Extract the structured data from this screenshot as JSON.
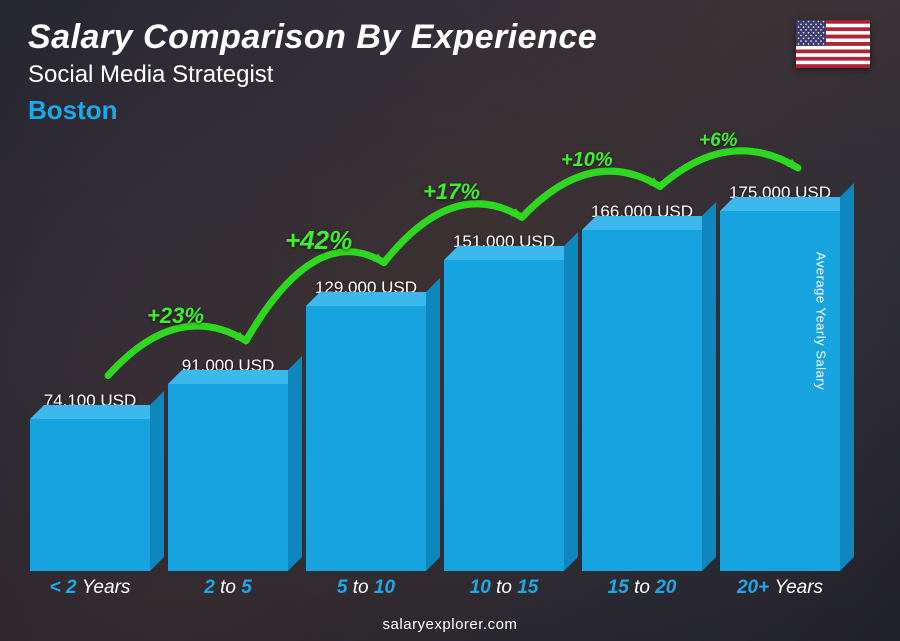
{
  "header": {
    "title": "Salary Comparison By Experience",
    "subtitle": "Social Media Strategist",
    "location": "Boston",
    "location_color": "#1fa8e8"
  },
  "flag": {
    "name": "us-flag",
    "stripe_red": "#b22234",
    "stripe_white": "#ffffff",
    "canton": "#3c3b6e"
  },
  "y_axis_label": "Average Yearly Salary",
  "footer": "salaryexplorer.com",
  "chart": {
    "type": "bar",
    "bar_color": "#17a3e0",
    "bar_top_color": "#3db8ec",
    "bar_side_color": "#0d87bd",
    "accent_color": "#1fa8e8",
    "pct_color": "#3fef2f",
    "arrow_color": "#2fd820",
    "value_color": "#ffffff",
    "max_value": 175000,
    "chart_area_height": 420,
    "bars": [
      {
        "label_pre": "< 2",
        "label_post": "Years",
        "label_to": "",
        "value": 74100,
        "value_label": "74,100 USD"
      },
      {
        "label_pre": "2",
        "label_post": "5",
        "label_to": "to",
        "value": 91000,
        "value_label": "91,000 USD"
      },
      {
        "label_pre": "5",
        "label_post": "10",
        "label_to": "to",
        "value": 129000,
        "value_label": "129,000 USD"
      },
      {
        "label_pre": "10",
        "label_post": "15",
        "label_to": "to",
        "value": 151000,
        "value_label": "151,000 USD"
      },
      {
        "label_pre": "15",
        "label_post": "20",
        "label_to": "to",
        "value": 166000,
        "value_label": "166,000 USD"
      },
      {
        "label_pre": "20+",
        "label_post": "Years",
        "label_to": "",
        "value": 175000,
        "value_label": "175,000 USD"
      }
    ],
    "increases": [
      {
        "label": "+23%",
        "fontsize": 22
      },
      {
        "label": "+42%",
        "fontsize": 26
      },
      {
        "label": "+17%",
        "fontsize": 22
      },
      {
        "label": "+10%",
        "fontsize": 20
      },
      {
        "label": "+6%",
        "fontsize": 19
      }
    ]
  }
}
